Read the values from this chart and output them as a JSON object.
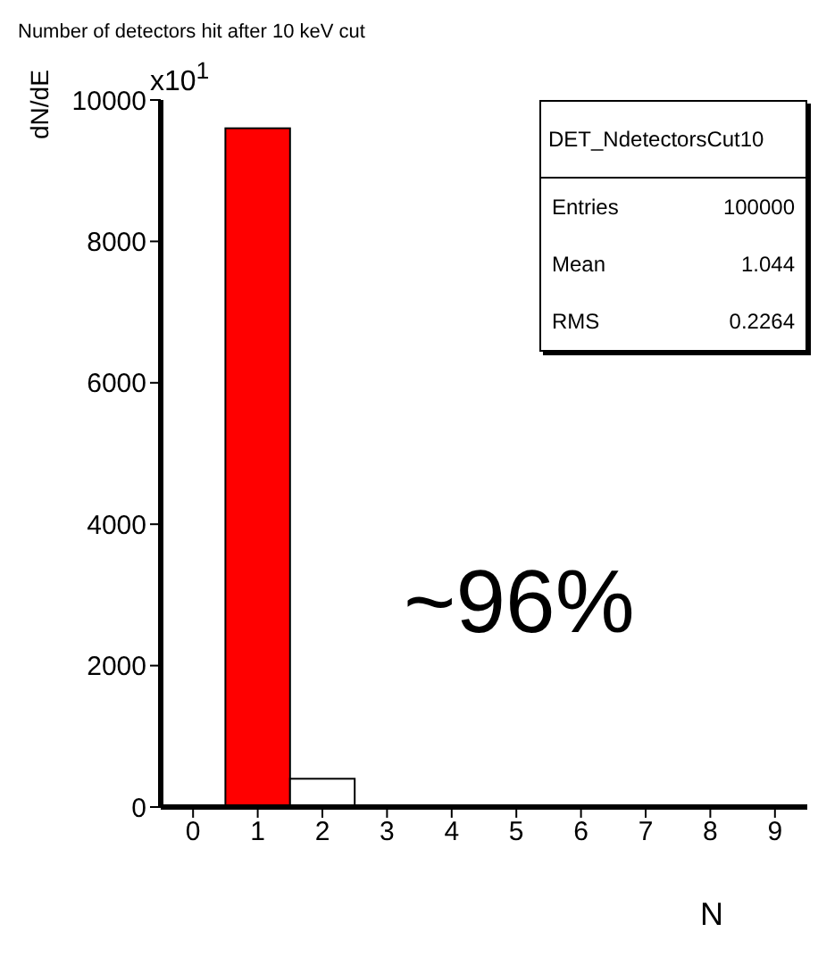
{
  "chart_data": {
    "type": "histogram",
    "title": "Number of detectors hit after 10 keV cut",
    "xlabel": "N",
    "ylabel": "dN/dE",
    "bins": [
      -0.5,
      0.5,
      1.5,
      2.5,
      3.5,
      4.5,
      5.5,
      6.5,
      7.5,
      8.5,
      9.5
    ],
    "values": [
      0,
      9600,
      400,
      0,
      0,
      0,
      0,
      0,
      0,
      0
    ],
    "colors": [
      "#ff0000",
      "#ff0000",
      "#ffffff",
      "#ffffff",
      "#ffffff",
      "#ffffff",
      "#ffffff",
      "#ffffff",
      "#ffffff",
      "#ffffff"
    ],
    "xlim": [
      -0.5,
      9.5
    ],
    "xticks": [
      0,
      1,
      2,
      3,
      4,
      5,
      6,
      7,
      8,
      9
    ],
    "ylim": [
      0,
      10000
    ],
    "yticks": [
      0,
      2000,
      4000,
      6000,
      8000,
      10000
    ],
    "annotations": [
      "x10$^{1}$",
      "DET_NdetectorsCut10",
      "Entries",
      "100000",
      "Mean",
      "1.044",
      "RMS",
      "0.2264",
      "~96%"
    ]
  }
}
